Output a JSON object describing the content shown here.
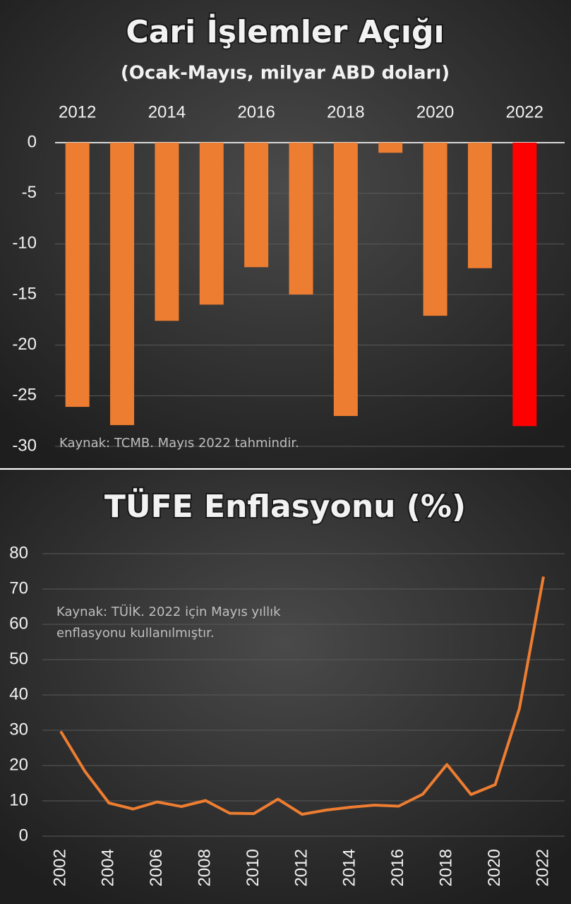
{
  "chart_data": [
    {
      "type": "bar",
      "title": "Cari İşlemler Açığı",
      "subtitle": "(Ocak-Mayıs, milyar ABD doları)",
      "categories": [
        "2012",
        null,
        "2014",
        null,
        "2016",
        null,
        "2018",
        null,
        "2020",
        null,
        "2022"
      ],
      "values": [
        -26.1,
        -27.9,
        -17.6,
        -16.0,
        -12.3,
        -15.0,
        -27.0,
        -1.0,
        -17.1,
        -12.4,
        -28.0
      ],
      "colors": [
        "#ed7d31",
        "#ed7d31",
        "#ed7d31",
        "#ed7d31",
        "#ed7d31",
        "#ed7d31",
        "#ed7d31",
        "#ed7d31",
        "#ed7d31",
        "#ed7d31",
        "#ff0000"
      ],
      "ylim": [
        -30,
        0
      ],
      "yticks": [
        0,
        -5,
        -10,
        -15,
        -20,
        -25,
        -30
      ],
      "grid": true,
      "annotation": [
        "Kaynak: TCMB. Mayıs 2022 tahmindir."
      ]
    },
    {
      "type": "line",
      "title": "TÜFE Enflasyonu (%)",
      "x": [
        2002,
        2003,
        2004,
        2005,
        2006,
        2007,
        2008,
        2009,
        2010,
        2011,
        2012,
        2013,
        2014,
        2015,
        2016,
        2017,
        2018,
        2019,
        2020,
        2021,
        2022
      ],
      "values": [
        29.7,
        18.4,
        9.4,
        7.7,
        9.7,
        8.4,
        10.1,
        6.5,
        6.4,
        10.5,
        6.2,
        7.4,
        8.2,
        8.8,
        8.5,
        11.9,
        20.3,
        11.8,
        14.6,
        36.1,
        73.5
      ],
      "color": "#ed7d31",
      "xlim": [
        2002,
        2022
      ],
      "xticks": [
        2002,
        2004,
        2006,
        2008,
        2010,
        2012,
        2014,
        2016,
        2018,
        2020,
        2022
      ],
      "ylim": [
        0,
        80
      ],
      "yticks": [
        0,
        10,
        20,
        30,
        40,
        50,
        60,
        70,
        80
      ],
      "grid": true,
      "annotation": [
        "Kaynak: TÜİK. 2022 için Mayıs yıllık",
        "enflasyonu kullanılmıştır."
      ]
    }
  ]
}
